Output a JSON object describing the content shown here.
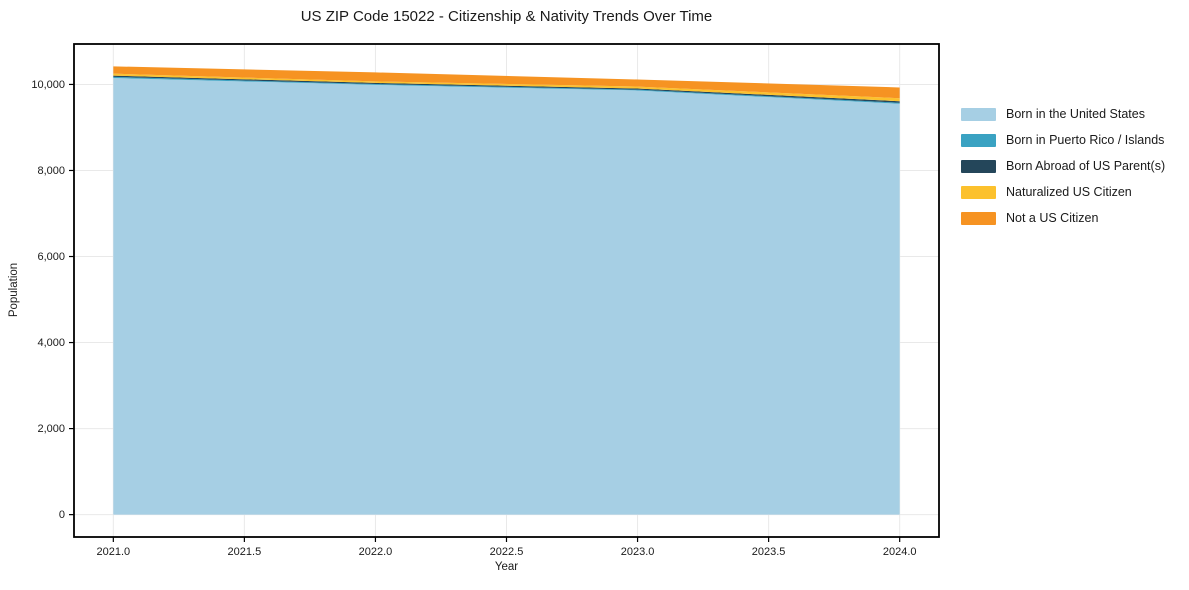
{
  "figure": {
    "background": "#ffffff",
    "text_color": "#1a1a1a",
    "grid_color": "#e9e9e9",
    "spine_color": "#000000"
  },
  "chart_data": {
    "type": "area",
    "stacked": true,
    "title": "US ZIP Code 15022 - Citizenship & Nativity Trends Over Time",
    "xlabel": "Year",
    "ylabel": "Population",
    "grid": true,
    "legend_position": "center right outside",
    "x": [
      2021,
      2022,
      2023,
      2024
    ],
    "series": [
      {
        "name": "Born in the United States",
        "color": "#a6cfe4",
        "values": [
          10150,
          9990,
          9860,
          9550
        ]
      },
      {
        "name": "Born in Puerto Rico / Islands",
        "color": "#3aa2c2",
        "values": [
          25,
          20,
          20,
          25
        ]
      },
      {
        "name": "Born Abroad of US Parent(s)",
        "color": "#24465a",
        "values": [
          30,
          25,
          25,
          35
        ]
      },
      {
        "name": "Naturalized US Citizen",
        "color": "#fcc12d",
        "values": [
          45,
          35,
          45,
          70
        ]
      },
      {
        "name": "Not a US Citizen",
        "color": "#f69322",
        "values": [
          170,
          210,
          165,
          250
        ]
      }
    ],
    "totals": [
      10420,
      10280,
      10115,
      9930
    ],
    "xlim": [
      2020.85,
      2024.15
    ],
    "ylim": [
      -520,
      10940
    ],
    "x_ticks": [
      {
        "v": 2021.0,
        "label": "2021.0"
      },
      {
        "v": 2021.5,
        "label": "2021.5"
      },
      {
        "v": 2022.0,
        "label": "2022.0"
      },
      {
        "v": 2022.5,
        "label": "2022.5"
      },
      {
        "v": 2023.0,
        "label": "2023.0"
      },
      {
        "v": 2023.5,
        "label": "2023.5"
      },
      {
        "v": 2024.0,
        "label": "2024.0"
      }
    ],
    "y_ticks": [
      {
        "v": 0,
        "label": "0"
      },
      {
        "v": 2000,
        "label": "2,000"
      },
      {
        "v": 4000,
        "label": "4,000"
      },
      {
        "v": 6000,
        "label": "6,000"
      },
      {
        "v": 8000,
        "label": "8,000"
      },
      {
        "v": 10000,
        "label": "10,000"
      }
    ]
  }
}
